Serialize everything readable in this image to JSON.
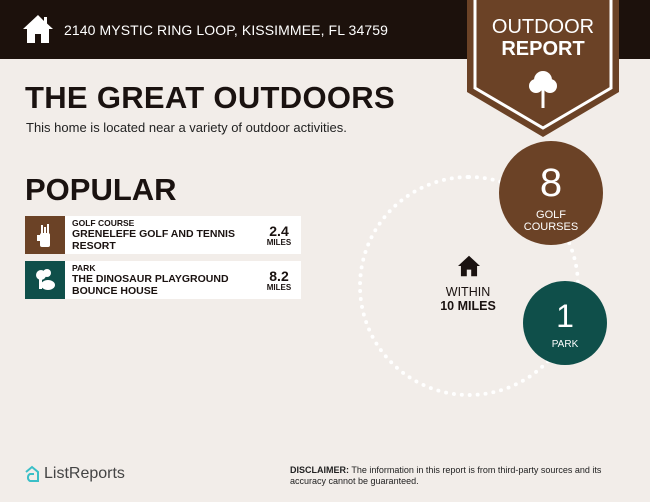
{
  "header": {
    "address": "2140 MYSTIC RING LOOP, KISSIMMEE, FL 34759",
    "icon": "home-icon"
  },
  "banner": {
    "line1": "OUTDOOR",
    "line2": "REPORT",
    "icon": "tree-icon",
    "color": "#6b4226"
  },
  "title": "THE GREAT OUTDOORS",
  "subtitle": "This home is located near a variety of outdoor activities.",
  "popular": {
    "heading": "POPULAR",
    "items": [
      {
        "type": "GOLF COURSE",
        "name1": "GRENELEFE GOLF AND TENNIS",
        "name2": "RESORT",
        "distance": "2.4",
        "unit": "MILES",
        "icon": "golf-bag-icon",
        "color": "#6b4226"
      },
      {
        "type": "PARK",
        "name1": "THE DINOSAUR PLAYGROUND",
        "name2": "BOUNCE HOUSE",
        "distance": "8.2",
        "unit": "MILES",
        "icon": "park-trees-icon",
        "color": "#0f4f4a"
      }
    ]
  },
  "radius": {
    "line1": "WITHIN",
    "line2": "10 MILES",
    "icon": "home-icon"
  },
  "stats": [
    {
      "count": "8",
      "label1": "GOLF",
      "label2": "COURSES",
      "color": "#6b4226"
    },
    {
      "count": "1",
      "label1": "PARK",
      "color": "#0f4f4a"
    }
  ],
  "footer": {
    "logo": "ListReports",
    "disclaimer_label": "DISCLAIMER:",
    "disclaimer": " The information in this report is from third-party sources and its accuracy cannot be guaranteed."
  }
}
